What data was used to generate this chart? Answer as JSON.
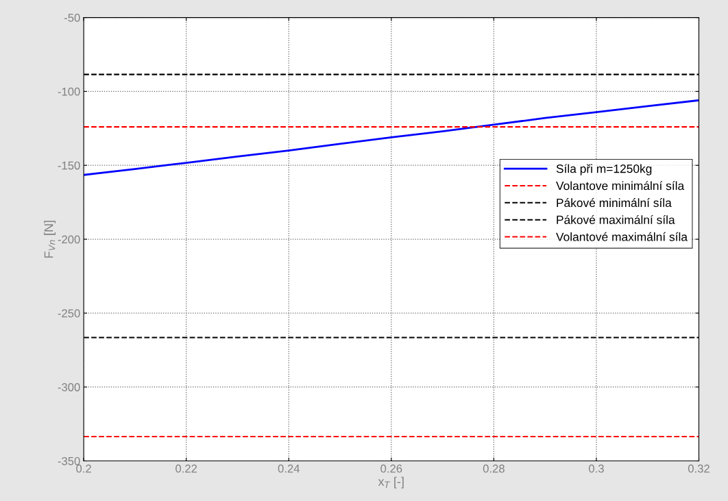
{
  "chart_data": {
    "type": "line",
    "xlabel": "x$_{T}$ [-]",
    "ylabel": "F$_{Vn}$ [N]",
    "series": [
      {
        "name": "Síla při m=1250kg",
        "color": "#0000ff",
        "x": [
          0.2,
          0.21,
          0.22,
          0.23,
          0.24,
          0.25,
          0.26,
          0.27,
          0.28,
          0.29,
          0.3,
          0.31,
          0.32
        ],
        "values": [
          -156.5,
          -152.5,
          -148.3,
          -144,
          -140,
          -135.5,
          -131,
          -127,
          -122.5,
          -118,
          -114,
          -110,
          -106
        ]
      }
    ],
    "ref_lines": [
      {
        "axis": "y",
        "value": -124,
        "label": "Volantove minimální síla",
        "color": "#ff0000",
        "line_style": "dashed"
      },
      {
        "axis": "y",
        "value": -88.5,
        "label": "Pákové minimální síla",
        "color": "#000000",
        "line_style": "dashed"
      },
      {
        "axis": "y",
        "value": -266.5,
        "label": "Pákové maximální síla",
        "color": "#000000",
        "line_style": "dashed"
      },
      {
        "axis": "y",
        "value": -333.5,
        "label": "Volantové maximální síla",
        "color": "#ff0000",
        "line_style": "dashed"
      }
    ],
    "xlim": [
      0.2,
      0.32
    ],
    "xticks": [
      0.2,
      0.22,
      0.24,
      0.26,
      0.28,
      0.3,
      0.32
    ],
    "ylim": [
      -350,
      -50
    ],
    "yticks": [
      -350,
      -300,
      -250,
      -200,
      -150,
      -100,
      -50
    ],
    "grid": true,
    "legend": "right",
    "line_style": "solid",
    "marker": "none"
  }
}
